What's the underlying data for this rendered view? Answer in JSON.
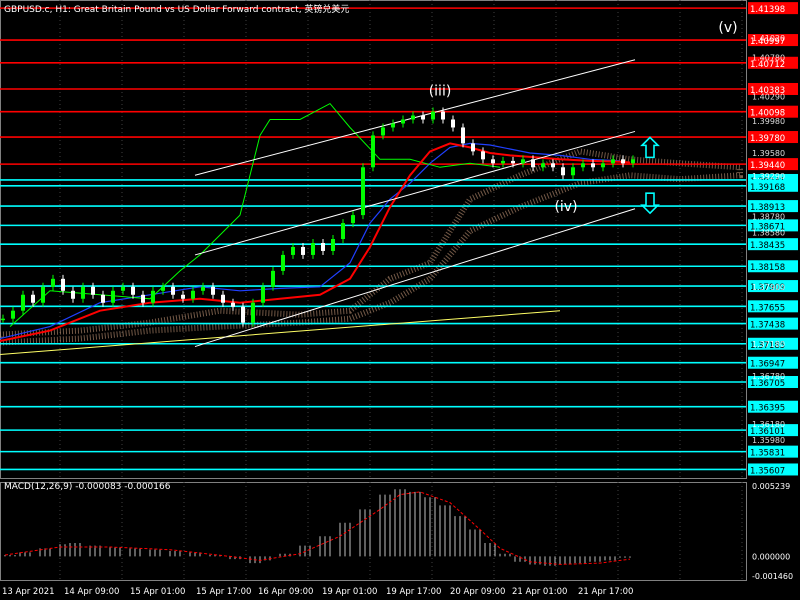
{
  "header": {
    "title": "GBPUSD.c, H1: Great Britain Pound vs US Dollar Forward contract, 英镑兑美元"
  },
  "colors": {
    "background": "#000000",
    "grid": "#404040",
    "candle_up": "#00ff00",
    "candle_down": "#ffffff",
    "red_level": "#ff0000",
    "cyan_level": "#00ffff",
    "channel": "#ffffff",
    "trendline": "#ffff66",
    "ma_red": "#ff0000",
    "ma_blue": "#2040ff",
    "chikou": "#00ff00",
    "macd_hist": "#c0c0c0",
    "macd_signal": "#ff0000"
  },
  "chart_data": {
    "type": "line",
    "symbol": "GBPUSD.c",
    "timeframe": "H1",
    "xlabels": [
      "13 Apr 2021",
      "14 Apr 09:00",
      "15 Apr 01:00",
      "15 Apr 17:00",
      "16 Apr 09:00",
      "19 Apr 01:00",
      "19 Apr 17:00",
      "20 Apr 09:00",
      "21 Apr 01:00",
      "21 Apr 17:00"
    ],
    "price_axis": {
      "min": 1.355,
      "max": 1.415,
      "ticks": [
        "1.41020",
        "1.40780",
        "1.40290",
        "1.39980",
        "1.39580",
        "1.39290",
        "1.38780",
        "1.38580",
        "1.37900",
        "1.37180",
        "1.36780",
        "1.36180",
        "1.35980"
      ]
    },
    "red_levels": [
      {
        "value": 1.41398,
        "label": "1.41398"
      },
      {
        "value": 1.40997,
        "label": "1.40997"
      },
      {
        "value": 1.40712,
        "label": "1.40712"
      },
      {
        "value": 1.40383,
        "label": "1.40383"
      },
      {
        "value": 1.40098,
        "label": "1.40098"
      },
      {
        "value": 1.3978,
        "label": "1.39780"
      },
      {
        "value": 1.3944,
        "label": "1.39440"
      }
    ],
    "cyan_levels": [
      {
        "value": 1.39241,
        "label": "1.39241"
      },
      {
        "value": 1.39168,
        "label": "1.39168"
      },
      {
        "value": 1.38913,
        "label": "1.38913"
      },
      {
        "value": 1.38671,
        "label": "1.38671"
      },
      {
        "value": 1.38435,
        "label": "1.38435"
      },
      {
        "value": 1.38158,
        "label": "1.38158"
      },
      {
        "value": 1.37909,
        "label": "1.37909"
      },
      {
        "value": 1.37655,
        "label": "1.37655"
      },
      {
        "value": 1.37438,
        "label": "1.37438"
      },
      {
        "value": 1.37185,
        "label": "1.37185"
      },
      {
        "value": 1.36947,
        "label": "1.36947"
      },
      {
        "value": 1.36705,
        "label": "1.36705"
      },
      {
        "value": 1.36395,
        "label": "1.36395"
      },
      {
        "value": 1.36101,
        "label": "1.36101"
      },
      {
        "value": 1.35831,
        "label": "1.35831"
      },
      {
        "value": 1.35607,
        "label": "1.35607"
      }
    ],
    "price_series": [
      [
        0,
        1.375
      ],
      [
        10,
        1.376
      ],
      [
        20,
        1.378
      ],
      [
        30,
        1.377
      ],
      [
        40,
        1.379
      ],
      [
        50,
        1.38
      ],
      [
        60,
        1.3785
      ],
      [
        70,
        1.3775
      ],
      [
        80,
        1.379
      ],
      [
        90,
        1.378
      ],
      [
        100,
        1.377
      ],
      [
        110,
        1.3785
      ],
      [
        120,
        1.379
      ],
      [
        130,
        1.378
      ],
      [
        140,
        1.377
      ],
      [
        150,
        1.3785
      ],
      [
        160,
        1.379
      ],
      [
        170,
        1.378
      ],
      [
        180,
        1.3775
      ],
      [
        190,
        1.3785
      ],
      [
        200,
        1.379
      ],
      [
        210,
        1.378
      ],
      [
        220,
        1.377
      ],
      [
        230,
        1.3765
      ],
      [
        240,
        1.3745
      ],
      [
        250,
        1.377
      ],
      [
        260,
        1.379
      ],
      [
        270,
        1.381
      ],
      [
        280,
        1.383
      ],
      [
        290,
        1.384
      ],
      [
        300,
        1.383
      ],
      [
        310,
        1.3845
      ],
      [
        320,
        1.3835
      ],
      [
        330,
        1.385
      ],
      [
        340,
        1.387
      ],
      [
        350,
        1.388
      ],
      [
        360,
        1.394
      ],
      [
        370,
        1.398
      ],
      [
        380,
        1.399
      ],
      [
        390,
        1.3995
      ],
      [
        400,
        1.4
      ],
      [
        410,
        1.4005
      ],
      [
        420,
        1.4
      ],
      [
        430,
        1.401
      ],
      [
        440,
        1.4
      ],
      [
        450,
        1.399
      ],
      [
        460,
        1.397
      ],
      [
        470,
        1.396
      ],
      [
        480,
        1.395
      ],
      [
        490,
        1.3945
      ],
      [
        500,
        1.3948
      ],
      [
        510,
        1.3945
      ],
      [
        520,
        1.395
      ],
      [
        530,
        1.394
      ],
      [
        540,
        1.3945
      ],
      [
        550,
        1.394
      ],
      [
        560,
        1.393
      ],
      [
        570,
        1.394
      ],
      [
        580,
        1.3945
      ],
      [
        590,
        1.394
      ],
      [
        600,
        1.3945
      ],
      [
        610,
        1.395
      ],
      [
        620,
        1.3945
      ],
      [
        630,
        1.395
      ]
    ],
    "ma_red": [
      [
        0,
        1.3722
      ],
      [
        50,
        1.3735
      ],
      [
        100,
        1.376
      ],
      [
        150,
        1.377
      ],
      [
        200,
        1.3775
      ],
      [
        240,
        1.377
      ],
      [
        280,
        1.3775
      ],
      [
        320,
        1.378
      ],
      [
        350,
        1.38
      ],
      [
        370,
        1.384
      ],
      [
        390,
        1.389
      ],
      [
        410,
        1.393
      ],
      [
        430,
        1.396
      ],
      [
        450,
        1.397
      ],
      [
        470,
        1.3965
      ],
      [
        490,
        1.3958
      ],
      [
        510,
        1.3955
      ],
      [
        530,
        1.3953
      ],
      [
        560,
        1.395
      ],
      [
        590,
        1.3948
      ],
      [
        620,
        1.3947
      ],
      [
        630,
        1.3946
      ]
    ],
    "ma_blue": [
      [
        0,
        1.3725
      ],
      [
        50,
        1.374
      ],
      [
        100,
        1.377
      ],
      [
        150,
        1.378
      ],
      [
        200,
        1.379
      ],
      [
        240,
        1.3785
      ],
      [
        280,
        1.3788
      ],
      [
        320,
        1.379
      ],
      [
        350,
        1.382
      ],
      [
        370,
        1.387
      ],
      [
        390,
        1.39
      ],
      [
        410,
        1.392
      ],
      [
        430,
        1.3945
      ],
      [
        450,
        1.3965
      ],
      [
        470,
        1.397
      ],
      [
        490,
        1.3968
      ],
      [
        510,
        1.3963
      ],
      [
        530,
        1.3958
      ],
      [
        560,
        1.3955
      ],
      [
        590,
        1.395
      ],
      [
        620,
        1.3948
      ]
    ],
    "chikou": [
      [
        10,
        1.374
      ],
      [
        50,
        1.3785
      ],
      [
        100,
        1.378
      ],
      [
        150,
        1.3775
      ],
      [
        180,
        1.381
      ],
      [
        200,
        1.383
      ],
      [
        240,
        1.388
      ],
      [
        260,
        1.398
      ],
      [
        270,
        1.4
      ],
      [
        300,
        1.4
      ],
      [
        330,
        1.402
      ],
      [
        350,
        1.399
      ],
      [
        380,
        1.395
      ],
      [
        410,
        1.395
      ],
      [
        440,
        1.394
      ],
      [
        470,
        1.3945
      ],
      [
        500,
        1.394
      ]
    ],
    "cloud_upper": [
      [
        0,
        1.373
      ],
      [
        80,
        1.3735
      ],
      [
        150,
        1.3745
      ],
      [
        220,
        1.376
      ],
      [
        300,
        1.3755
      ],
      [
        350,
        1.376
      ],
      [
        390,
        1.38
      ],
      [
        430,
        1.382
      ],
      [
        470,
        1.39
      ],
      [
        520,
        1.393
      ],
      [
        580,
        1.396
      ],
      [
        630,
        1.395
      ],
      [
        680,
        1.3945
      ],
      [
        740,
        1.394
      ]
    ],
    "cloud_lower": [
      [
        0,
        1.372
      ],
      [
        80,
        1.3725
      ],
      [
        150,
        1.3735
      ],
      [
        220,
        1.374
      ],
      [
        300,
        1.3745
      ],
      [
        350,
        1.375
      ],
      [
        390,
        1.377
      ],
      [
        430,
        1.38
      ],
      [
        470,
        1.386
      ],
      [
        520,
        1.389
      ],
      [
        580,
        1.392
      ],
      [
        630,
        1.393
      ],
      [
        680,
        1.3925
      ],
      [
        740,
        1.393
      ]
    ],
    "channels": [
      {
        "x1": 195,
        "y1": 1.393,
        "x2": 635,
        "y2": 1.4075
      },
      {
        "x1": 195,
        "y1": 1.383,
        "x2": 635,
        "y2": 1.3985
      },
      {
        "x1": 195,
        "y1": 1.3715,
        "x2": 635,
        "y2": 1.3888
      }
    ],
    "trendline": {
      "x1": 0,
      "y1": 1.3705,
      "x2": 560,
      "y2": 1.376
    },
    "wave_labels": [
      {
        "text": "(iii)",
        "x": 440,
        "price": 1.403
      },
      {
        "text": "(iv)",
        "x": 566,
        "price": 1.3885
      },
      {
        "text": "(v)",
        "x": 728,
        "price": 1.411
      }
    ],
    "arrows": [
      {
        "dir": "up",
        "x": 650,
        "price": 1.3965
      },
      {
        "dir": "down",
        "x": 650,
        "price": 1.3895
      }
    ],
    "macd": {
      "label": "MACD(12,26,9) -0.000083 -0.000166",
      "params": "12,26,9",
      "main": -8.3e-05,
      "signal": -0.000166,
      "axis_ticks": [
        "0.005239",
        "0.000000",
        "-0.001460"
      ],
      "max": 0.005239,
      "min": -0.00146,
      "histogram": [
        [
          5,
          0.0001
        ],
        [
          20,
          0.0003
        ],
        [
          40,
          0.0006
        ],
        [
          60,
          0.0009
        ],
        [
          70,
          0.001
        ],
        [
          90,
          0.0008
        ],
        [
          110,
          0.0007
        ],
        [
          130,
          0.0006
        ],
        [
          150,
          0.0005
        ],
        [
          170,
          0.0004
        ],
        [
          190,
          0.0003
        ],
        [
          210,
          0.0001
        ],
        [
          230,
          -0.0002
        ],
        [
          250,
          -0.0005
        ],
        [
          260,
          -0.0003
        ],
        [
          280,
          0.0002
        ],
        [
          300,
          0.0008
        ],
        [
          320,
          0.0015
        ],
        [
          340,
          0.0025
        ],
        [
          360,
          0.0035
        ],
        [
          380,
          0.0046
        ],
        [
          395,
          0.005
        ],
        [
          410,
          0.0048
        ],
        [
          425,
          0.0044
        ],
        [
          440,
          0.0038
        ],
        [
          455,
          0.003
        ],
        [
          470,
          0.002
        ],
        [
          485,
          0.001
        ],
        [
          500,
          0.0002
        ],
        [
          515,
          -0.0004
        ],
        [
          530,
          -0.0006
        ],
        [
          545,
          -0.0007
        ],
        [
          560,
          -0.0006
        ],
        [
          575,
          -0.0005
        ],
        [
          590,
          -0.0004
        ],
        [
          605,
          -0.0003
        ],
        [
          620,
          -0.0001
        ]
      ],
      "signal_line": [
        [
          5,
          0.0001
        ],
        [
          60,
          0.0007
        ],
        [
          110,
          0.0007
        ],
        [
          170,
          0.0005
        ],
        [
          230,
          0.0
        ],
        [
          260,
          -0.0003
        ],
        [
          300,
          0.0002
        ],
        [
          340,
          0.0015
        ],
        [
          380,
          0.0035
        ],
        [
          400,
          0.0046
        ],
        [
          420,
          0.0048
        ],
        [
          450,
          0.004
        ],
        [
          480,
          0.002
        ],
        [
          500,
          0.0006
        ],
        [
          530,
          -0.0004
        ],
        [
          560,
          -0.0006
        ],
        [
          600,
          -0.0005
        ],
        [
          630,
          -0.0002
        ]
      ]
    }
  }
}
